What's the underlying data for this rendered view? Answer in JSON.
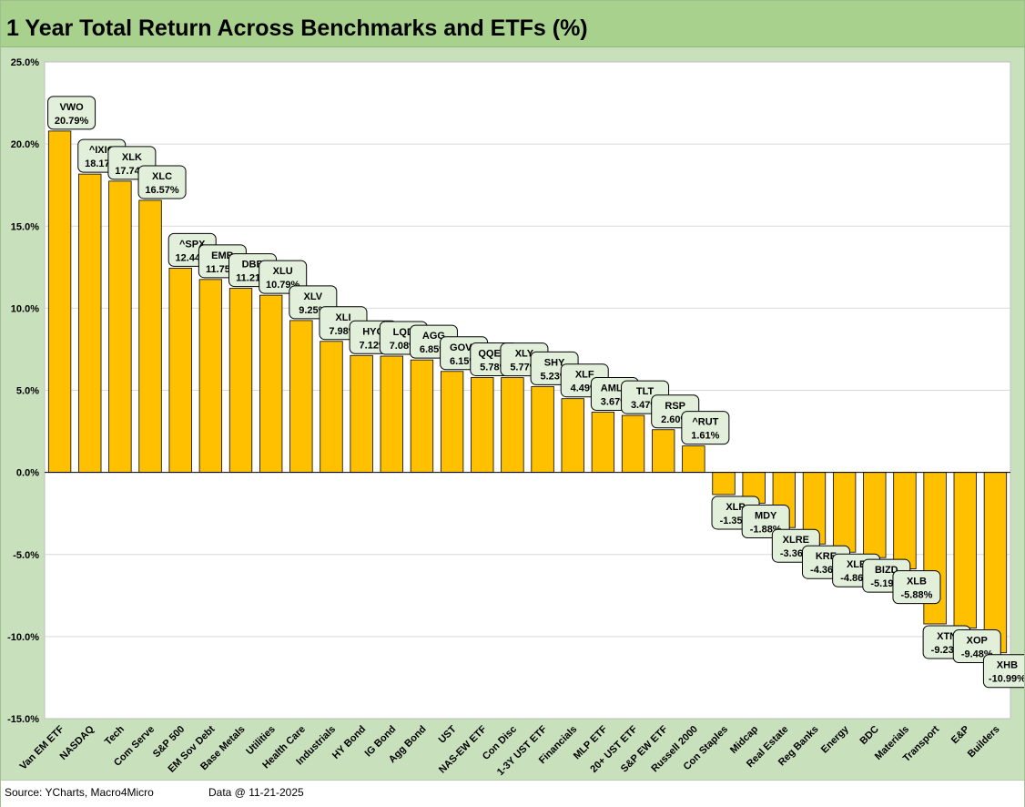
{
  "chart_data": {
    "type": "bar",
    "title": "1 Year Total Return Across Benchmarks and ETFs (%)",
    "ylim": [
      -15,
      25
    ],
    "y_ticks": [
      "25.0%",
      "20.0%",
      "15.0%",
      "10.0%",
      "5.0%",
      "0.0%",
      "-5.0%",
      "-10.0%",
      "-15.0%"
    ],
    "grid": true,
    "bar_color": "#ffc000",
    "label_box_color": "#e2efda",
    "categories": [
      "Van EM ETF",
      "NASDAQ",
      "Tech",
      "Com Serve",
      "S&P 500",
      "EM Sov Debt",
      "Base Metals",
      "Utilities",
      "Health Care",
      "Industrials",
      "HY Bond",
      "IG Bond",
      "Agg Bond",
      "UST",
      "NAS-EW ETF",
      "Con Disc",
      "1-3Y UST ETF",
      "Financials",
      "MLP ETF",
      "20+ UST ETF",
      "S&P EW ETF",
      "Russell 2000",
      "Con Staples",
      "Midcap",
      "Real Estate",
      "Reg Banks",
      "Energy",
      "BDC",
      "Materials",
      "Transport",
      "E&P",
      "Builders"
    ],
    "tickers": [
      "VWO",
      "^IXIC",
      "XLK",
      "XLC",
      "^SPX",
      "EMB",
      "DBB",
      "XLU",
      "XLV",
      "XLI",
      "HYG",
      "LQD",
      "AGG",
      "GOVT",
      "QQEW",
      "XLY",
      "SHY",
      "XLF",
      "AMLP",
      "TLT",
      "RSP",
      "^RUT",
      "XLP",
      "MDY",
      "XLRE",
      "KRE",
      "XLE",
      "BIZD",
      "XLB",
      "XTN",
      "XOP",
      "XHB"
    ],
    "values": [
      20.79,
      18.17,
      17.74,
      16.57,
      12.44,
      11.75,
      11.21,
      10.79,
      9.25,
      7.98,
      7.12,
      7.08,
      6.85,
      6.15,
      5.78,
      5.77,
      5.23,
      4.49,
      3.67,
      3.47,
      2.6,
      1.61,
      -1.35,
      -1.88,
      -3.36,
      -4.36,
      -4.86,
      -5.19,
      -5.88,
      -9.23,
      -9.48,
      -10.99
    ],
    "value_labels": [
      "20.79%",
      "18.17%",
      "17.74%",
      "16.57%",
      "12.44%",
      "11.75%",
      "11.21%",
      "10.79%",
      "9.25%",
      "7.98%",
      "7.12%",
      "7.08%",
      "6.85%",
      "6.15%",
      "5.78%",
      "5.77%",
      "5.23%",
      "4.49%",
      "3.67%",
      "3.47%",
      "2.60%",
      "1.61%",
      "-1.35%",
      "-1.88%",
      "-3.36%",
      "-4.36%",
      "-4.86%",
      "-5.19%",
      "-5.88%",
      "-9.23%",
      "-9.48%",
      "-10.99%"
    ]
  },
  "footer": {
    "source": "Source: YCharts, Macro4Micro",
    "date": "Data @ 11-21-2025"
  }
}
